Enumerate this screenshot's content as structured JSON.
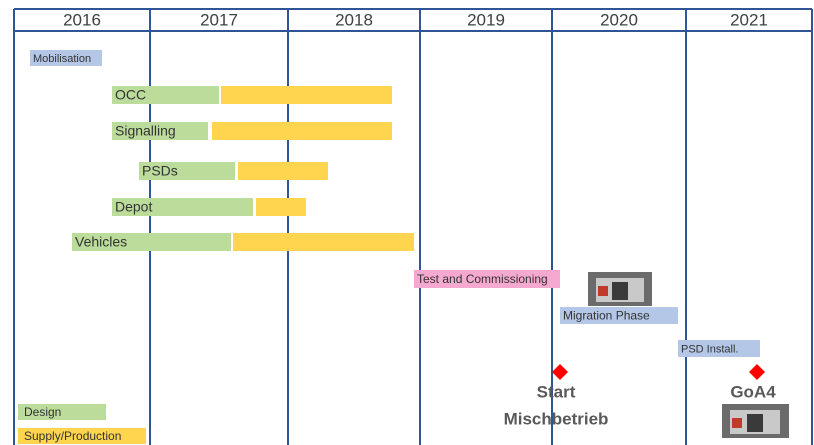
{
  "years": [
    "2016",
    "2017",
    "2018",
    "2019",
    "2020",
    "2021"
  ],
  "tasks": [
    {
      "label": "Mobilisation"
    },
    {
      "label": "OCC"
    },
    {
      "label": "Signalling"
    },
    {
      "label": "PSDs"
    },
    {
      "label": "Depot"
    },
    {
      "label": "Vehicles"
    },
    {
      "label": "Test and Commissioning"
    },
    {
      "label": "Migration Phase"
    },
    {
      "label": "PSD Install."
    }
  ],
  "milestones": [
    {
      "label_lines": [
        "Start",
        "Mischbetrieb"
      ]
    },
    {
      "label_lines": [
        "GoA4"
      ]
    }
  ],
  "legend": [
    "Design",
    "Supply/Production"
  ]
}
